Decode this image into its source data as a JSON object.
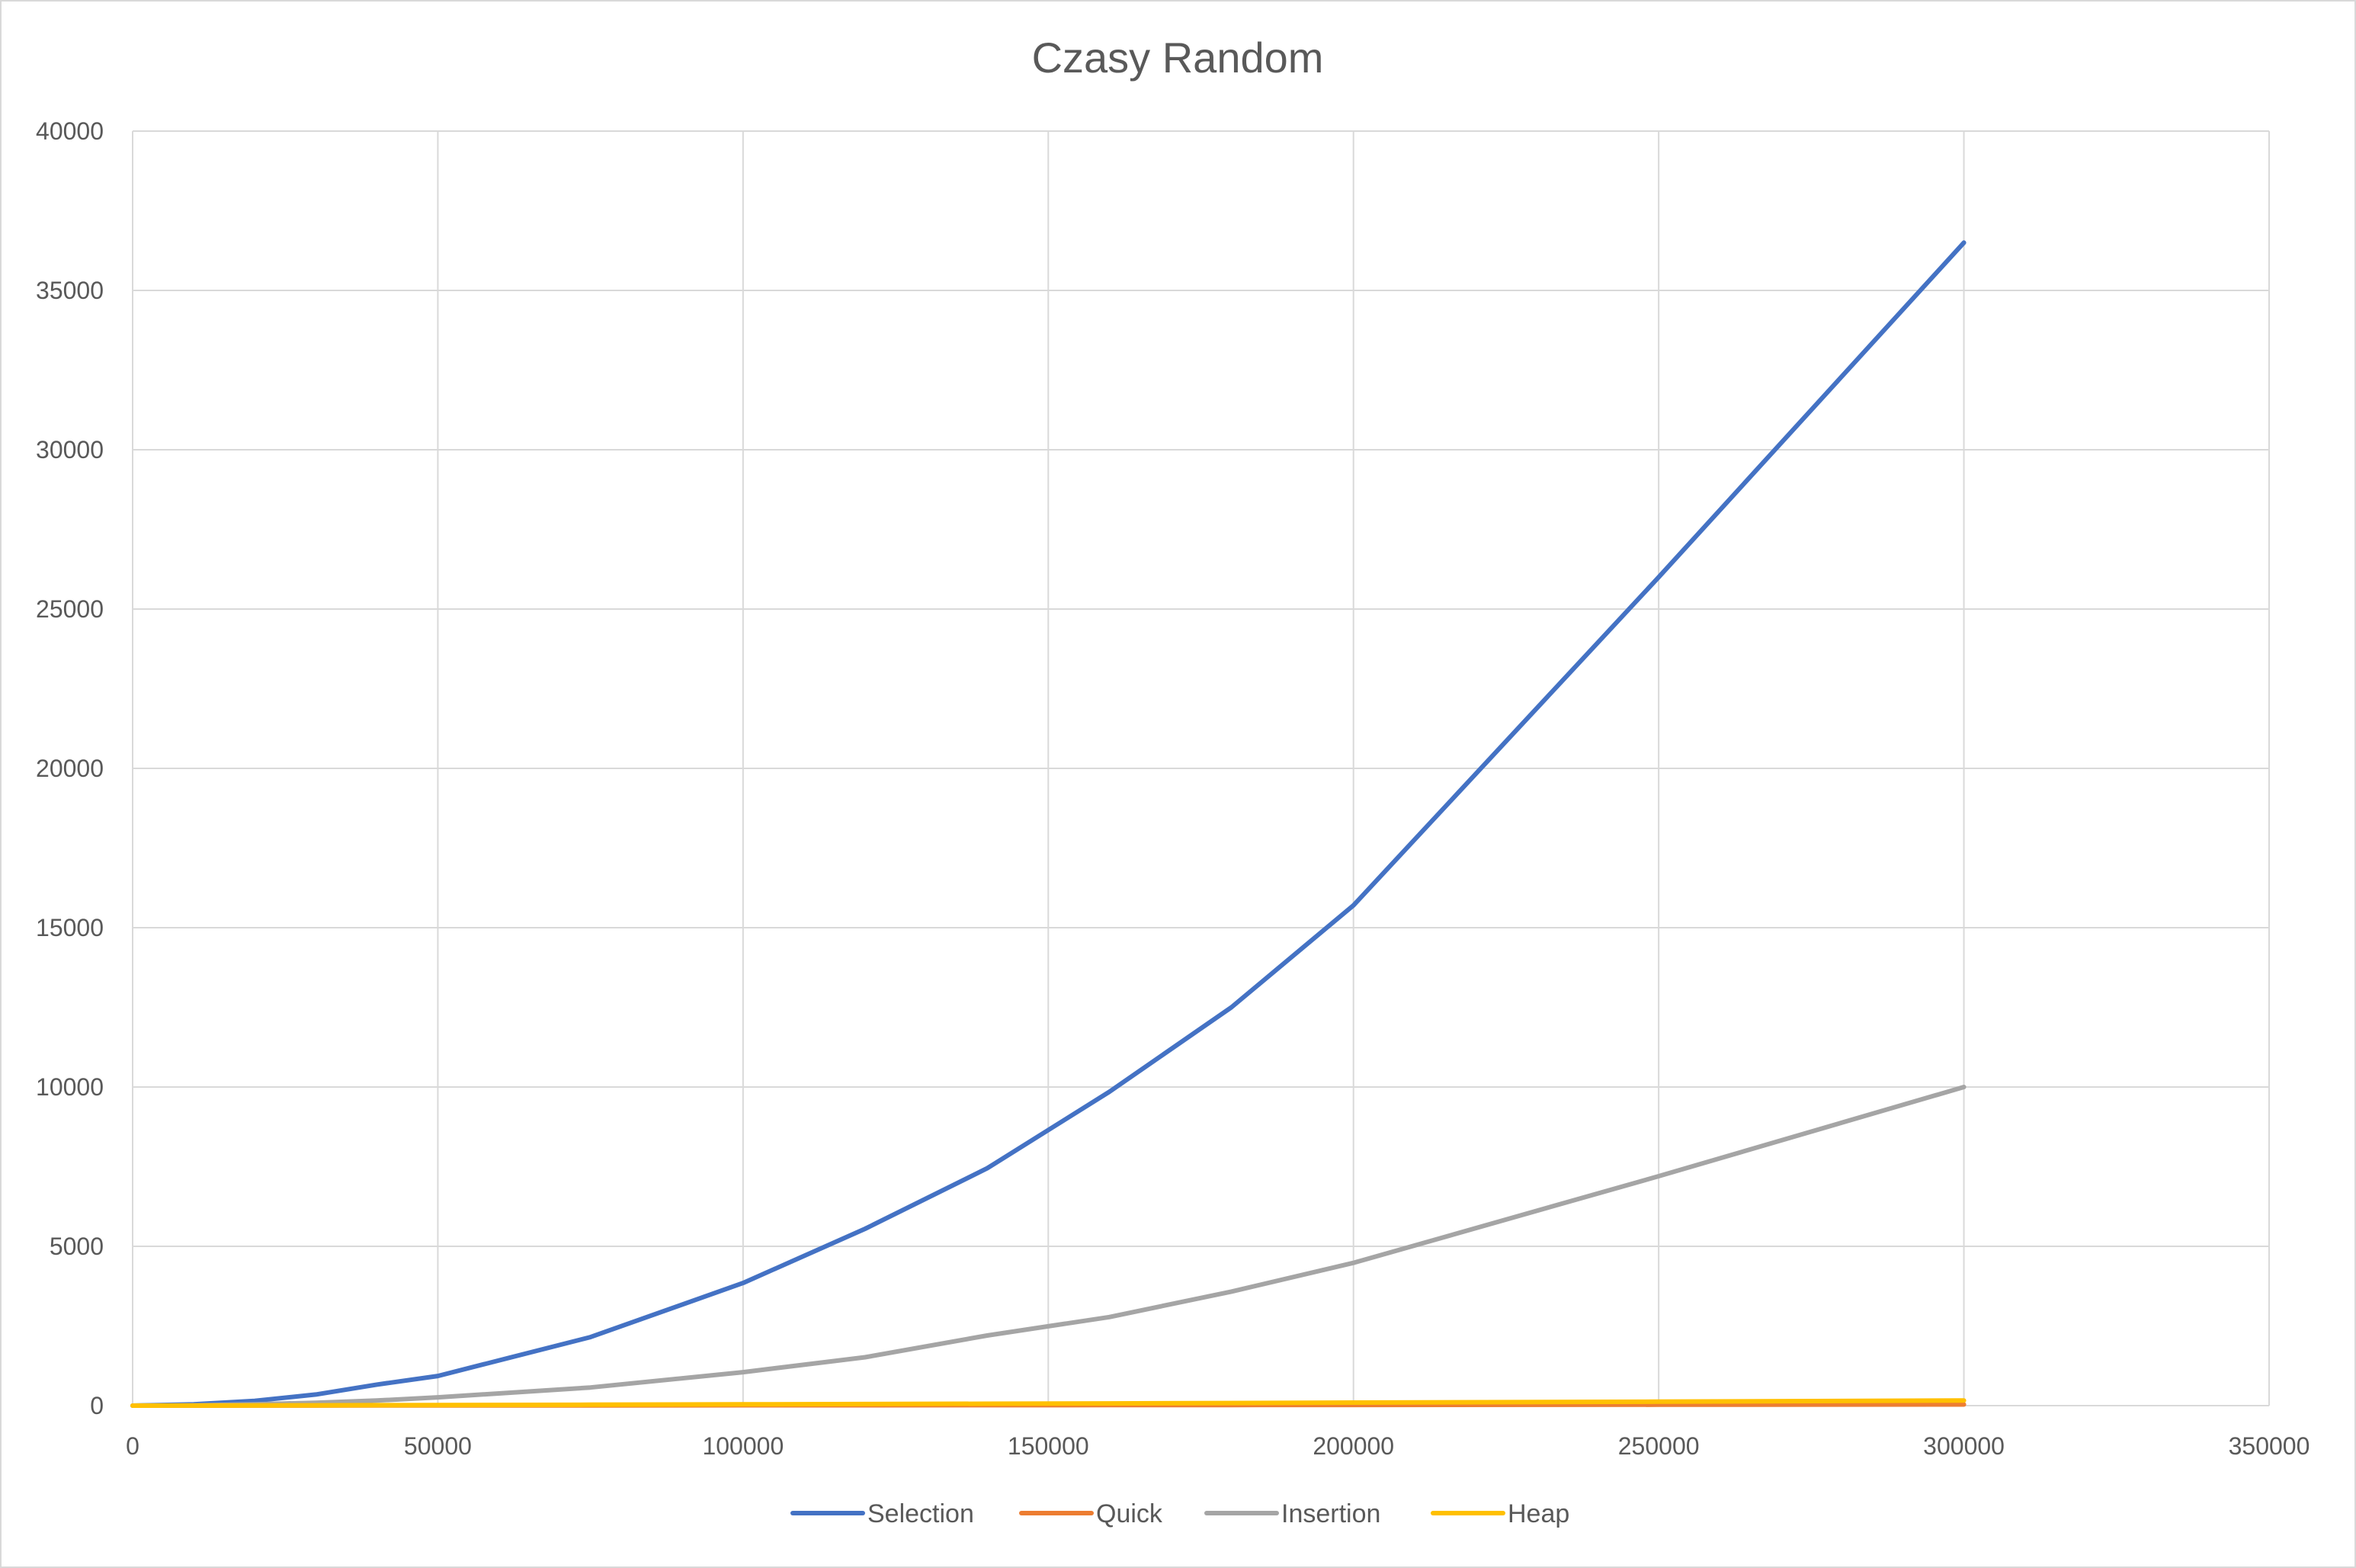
{
  "chart_data": {
    "type": "line",
    "title": "Czasy Random",
    "xlabel": "",
    "ylabel": "",
    "xlim": [
      0,
      350000
    ],
    "ylim": [
      0,
      40000
    ],
    "x_ticks": [
      "0",
      "50000",
      "100000",
      "150000",
      "200000",
      "250000",
      "300000",
      "350000"
    ],
    "y_ticks": [
      "0",
      "5000",
      "10000",
      "15000",
      "20000",
      "25000",
      "30000",
      "35000",
      "40000"
    ],
    "grid": true,
    "legend_position": "bottom",
    "series": [
      {
        "name": "Selection",
        "color": "#4472C4",
        "points": [
          [
            0,
            0
          ],
          [
            10000,
            40
          ],
          [
            20000,
            150
          ],
          [
            30000,
            350
          ],
          [
            40000,
            660
          ],
          [
            50000,
            930
          ],
          [
            75000,
            2150
          ],
          [
            100000,
            3850
          ],
          [
            120000,
            5550
          ],
          [
            140000,
            7450
          ],
          [
            160000,
            9850
          ],
          [
            180000,
            12500
          ],
          [
            200000,
            15700
          ],
          [
            250000,
            26000
          ],
          [
            300000,
            36500
          ]
        ]
      },
      {
        "name": "Quick",
        "color": "#ED7D31",
        "points": [
          [
            0,
            0
          ],
          [
            10000,
            1
          ],
          [
            20000,
            2
          ],
          [
            30000,
            3
          ],
          [
            40000,
            4
          ],
          [
            50000,
            5
          ],
          [
            75000,
            8
          ],
          [
            100000,
            11
          ],
          [
            120000,
            13
          ],
          [
            140000,
            15
          ],
          [
            160000,
            17
          ],
          [
            180000,
            20
          ],
          [
            200000,
            22
          ],
          [
            250000,
            28
          ],
          [
            300000,
            35
          ]
        ]
      },
      {
        "name": "Insertion",
        "color": "#A5A5A5",
        "points": [
          [
            0,
            0
          ],
          [
            10000,
            10
          ],
          [
            20000,
            40
          ],
          [
            30000,
            90
          ],
          [
            40000,
            160
          ],
          [
            50000,
            260
          ],
          [
            75000,
            570
          ],
          [
            100000,
            1050
          ],
          [
            120000,
            1520
          ],
          [
            140000,
            2200
          ],
          [
            160000,
            2780
          ],
          [
            180000,
            3580
          ],
          [
            200000,
            4480
          ],
          [
            250000,
            7200
          ],
          [
            300000,
            10000
          ]
        ]
      },
      {
        "name": "Heap",
        "color": "#FFC000",
        "points": [
          [
            0,
            0
          ],
          [
            10000,
            3
          ],
          [
            20000,
            6
          ],
          [
            30000,
            10
          ],
          [
            40000,
            14
          ],
          [
            50000,
            18
          ],
          [
            75000,
            28
          ],
          [
            100000,
            40
          ],
          [
            120000,
            50
          ],
          [
            140000,
            60
          ],
          [
            160000,
            70
          ],
          [
            180000,
            82
          ],
          [
            200000,
            95
          ],
          [
            250000,
            125
          ],
          [
            300000,
            160
          ]
        ]
      }
    ]
  }
}
